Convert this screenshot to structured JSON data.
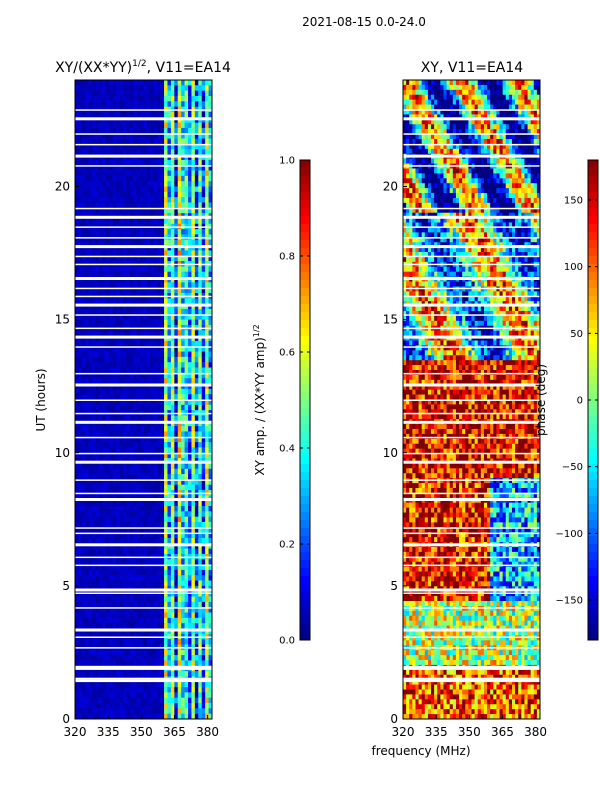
{
  "header": {
    "date_range": "2021-08-15 0.0-24.0"
  },
  "chart_data": [
    {
      "type": "heatmap",
      "title": "XY/(XX*YY)",
      "title_exp": "1/2",
      "title_suffix": ", V11=EA14",
      "xlabel": "",
      "ylabel": "UT (hours)",
      "xlim": [
        320,
        382
      ],
      "ylim": [
        0,
        24
      ],
      "xticks": [
        320,
        335,
        350,
        365,
        380
      ],
      "yticks": [
        0,
        5,
        10,
        15,
        20
      ],
      "colorbar": {
        "label": "XY amp. / (XX*YY amp)",
        "label_exp": "1/2",
        "range": [
          0.0,
          1.0
        ],
        "ticks": [
          "0.0",
          "0.2",
          "0.4",
          "0.6",
          "0.8",
          "1.0"
        ],
        "tick_values": [
          0.0,
          0.2,
          0.4,
          0.6,
          0.8,
          1.0
        ],
        "colormap": "jet"
      },
      "description_bands": [
        {
          "x_range": [
            320,
            361
          ],
          "value_approx": 0.05
        },
        {
          "x_range": [
            361,
            382
          ],
          "value_approx": 0.35
        }
      ]
    },
    {
      "type": "heatmap",
      "title": "XY, V11=EA14",
      "xlabel": "frequency (MHz)",
      "ylabel": "",
      "xlim": [
        320,
        382
      ],
      "ylim": [
        0,
        24
      ],
      "xticks": [
        320,
        335,
        350,
        365,
        380
      ],
      "yticks": [
        0,
        5,
        10,
        15,
        20
      ],
      "colorbar": {
        "label": "phase (deg)",
        "range": [
          -180,
          180
        ],
        "ticks": [
          "−150",
          "−100",
          "−50",
          "0",
          "50",
          "100",
          "150"
        ],
        "tick_values": [
          -150,
          -100,
          -50,
          0,
          50,
          100,
          150
        ],
        "colormap": "jet"
      }
    }
  ]
}
